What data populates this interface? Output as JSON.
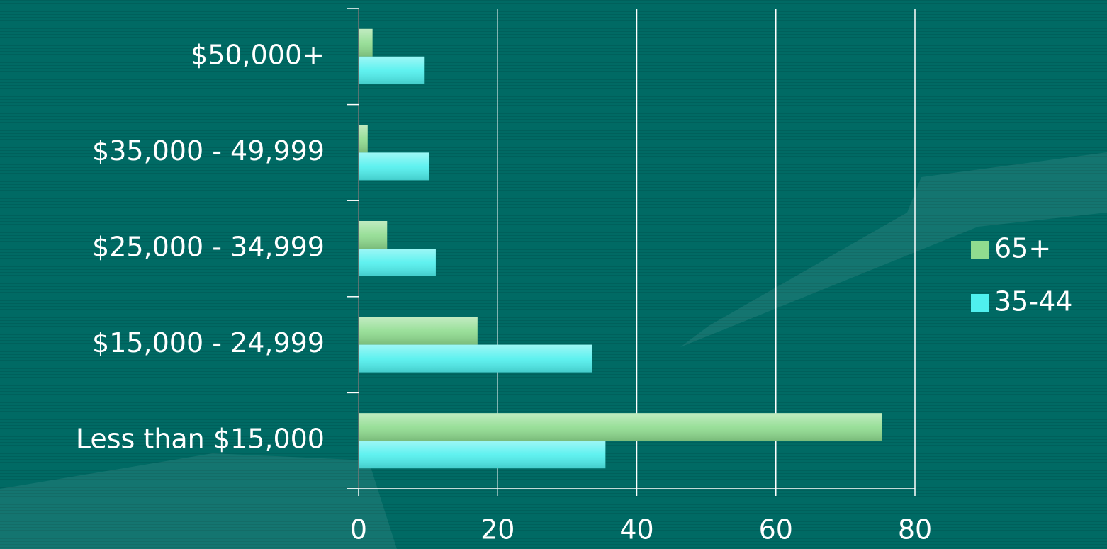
{
  "chart_data": {
    "type": "barh",
    "categories": [
      "$50,000+",
      "$35,000 - 49,999",
      "$25,000 - 34,999",
      "$15,000 - 24,999",
      "Less than $15,000"
    ],
    "series": [
      {
        "name": "65+",
        "color": "#8fdc8f",
        "values": [
          2.0,
          1.3,
          4.1,
          17.1,
          75.3
        ]
      },
      {
        "name": "35-44",
        "color": "#4ff0ee",
        "values": [
          9.4,
          10.1,
          11.1,
          33.6,
          35.5
        ]
      }
    ],
    "xlim": [
      0,
      80
    ],
    "xticks": [
      0,
      20,
      40,
      60,
      80
    ],
    "grid": true,
    "legend": "right"
  }
}
